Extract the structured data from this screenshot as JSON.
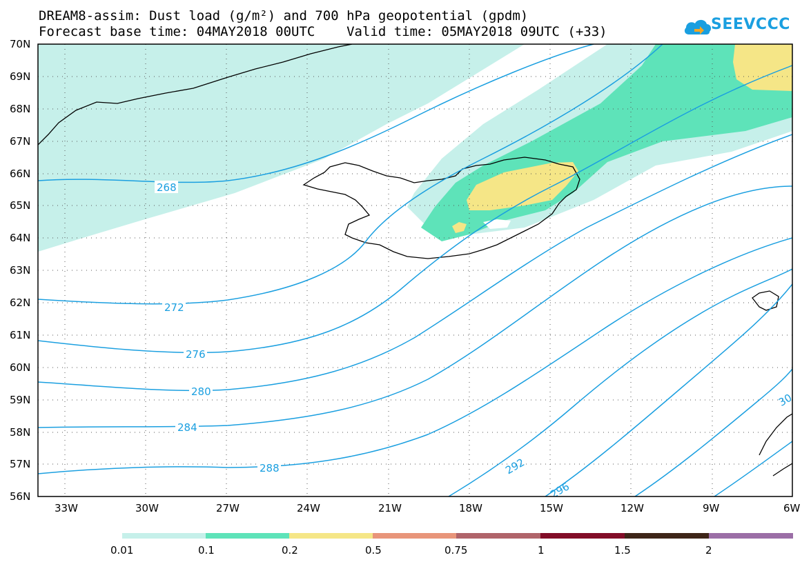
{
  "title_line1": "DREAM8-assim: Dust load (g/m²) and 700 hPa geopotential (gpdm)",
  "title_line2": "Forecast base time: 04MAY2018 00UTC    Valid time: 05MAY2018 09UTC (+33)",
  "logo_text": "SEEVCCC",
  "lat_labels": [
    "70N",
    "69N",
    "68N",
    "67N",
    "66N",
    "65N",
    "64N",
    "63N",
    "62N",
    "61N",
    "60N",
    "59N",
    "58N",
    "57N",
    "56N"
  ],
  "lon_labels": [
    "33W",
    "30W",
    "27W",
    "24W",
    "21W",
    "18W",
    "15W",
    "12W",
    "9W",
    "6W"
  ],
  "contour_labels": [
    "268",
    "272",
    "276",
    "280",
    "284",
    "288",
    "292",
    "296",
    "30"
  ],
  "legend": {
    "labels": [
      "0.01",
      "0.1",
      "0.2",
      "0.5",
      "0.75",
      "1",
      "1.5",
      "2"
    ],
    "colors": [
      "#c6f0ea",
      "#5ee3b9",
      "#f5e687",
      "#e8957a",
      "#b0646a",
      "#820d28",
      "#3e2518",
      "#9b6ea6"
    ]
  },
  "colors": {
    "contour": "#1a9fe0",
    "dust_0_01": "#c6f0ea",
    "dust_0_1": "#5ee3b9",
    "dust_0_2": "#f5e687"
  }
}
